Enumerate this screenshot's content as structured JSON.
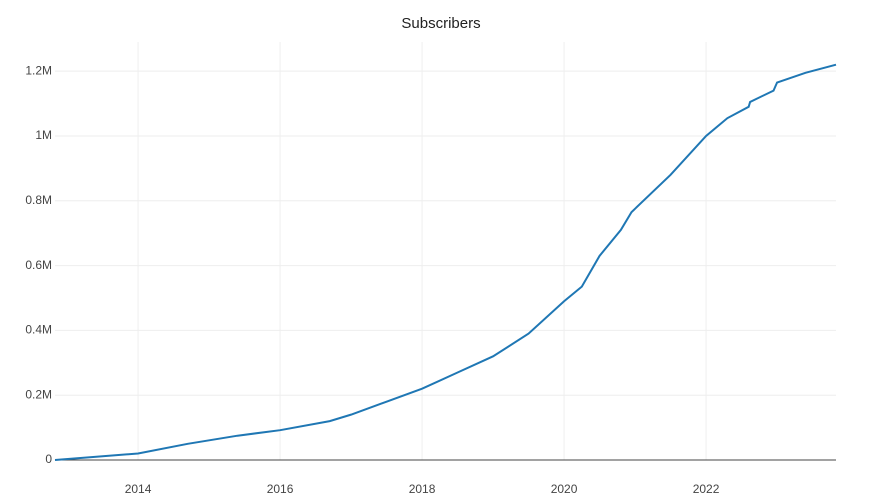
{
  "chart_data": {
    "type": "line",
    "title": "Subscribers",
    "x": [
      2012.83,
      2014,
      2014.7,
      2015.4,
      2016,
      2016.7,
      2017,
      2017.5,
      2018,
      2018.5,
      2019,
      2019.5,
      2020,
      2020.25,
      2020.5,
      2020.8,
      2020.95,
      2021.5,
      2022,
      2022.3,
      2022.6,
      2022.62,
      2022.95,
      2023,
      2023.4,
      2023.83
    ],
    "series": [
      {
        "name": "Subscribers",
        "color": "#1f77b4",
        "values": [
          0,
          20000,
          50000,
          75000,
          92000,
          120000,
          140000,
          180000,
          220000,
          270000,
          320000,
          390000,
          490000,
          535000,
          630000,
          710000,
          765000,
          880000,
          1000000,
          1055000,
          1090000,
          1105000,
          1140000,
          1165000,
          1195000,
          1220000
        ]
      }
    ],
    "xlim": [
      2012.83,
      2023.83
    ],
    "xticks": [
      2014,
      2016,
      2018,
      2020,
      2022
    ],
    "ylim": [
      0,
      1290000
    ],
    "yticks": [
      0,
      {
        "value": 200000,
        "label": "0.2M"
      },
      {
        "value": 400000,
        "label": "0.4M"
      },
      {
        "value": 600000,
        "label": "0.6M"
      },
      {
        "value": 800000,
        "label": "0.8M"
      },
      {
        "value": 1000000,
        "label": "1M"
      },
      {
        "value": 1200000,
        "label": "1.2M"
      }
    ],
    "grid": true
  }
}
